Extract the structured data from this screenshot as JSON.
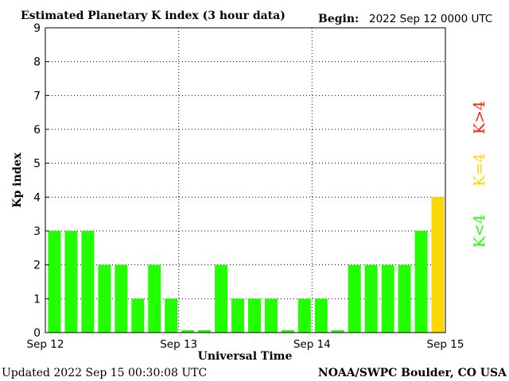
{
  "chart_data": {
    "type": "bar",
    "title": "Estimated Planetary K index (3 hour data)",
    "begin_label": "Begin:",
    "begin_value": "2022 Sep 12 0000 UTC",
    "xlabel": "Universal Time",
    "ylabel": "Kp index",
    "ylim": [
      0,
      9
    ],
    "yticks": [
      "0",
      "1",
      "2",
      "3",
      "4",
      "5",
      "6",
      "7",
      "8",
      "9"
    ],
    "xticks": [
      "Sep 12",
      "Sep 13",
      "Sep 14",
      "Sep 15"
    ],
    "grid": "dotted",
    "values": [
      3,
      3,
      3,
      2,
      2,
      1,
      2,
      1,
      0.07,
      0.07,
      2,
      1,
      1,
      1,
      0.07,
      1,
      1,
      0.07,
      2,
      2,
      2,
      2,
      3,
      4
    ],
    "colors": {
      "below_4": "#22ff00",
      "equal_4": "#ffd700",
      "above_4": "#ff2200"
    },
    "legend": [
      {
        "label": "K<4",
        "color": "#22ff00"
      },
      {
        "label": "K=4",
        "color": "#ffd700"
      },
      {
        "label": "K>4",
        "color": "#ff2200"
      }
    ]
  },
  "footer": {
    "updated": "Updated 2022 Sep 15 00:30:08 UTC",
    "source": "NOAA/SWPC Boulder, CO USA"
  }
}
